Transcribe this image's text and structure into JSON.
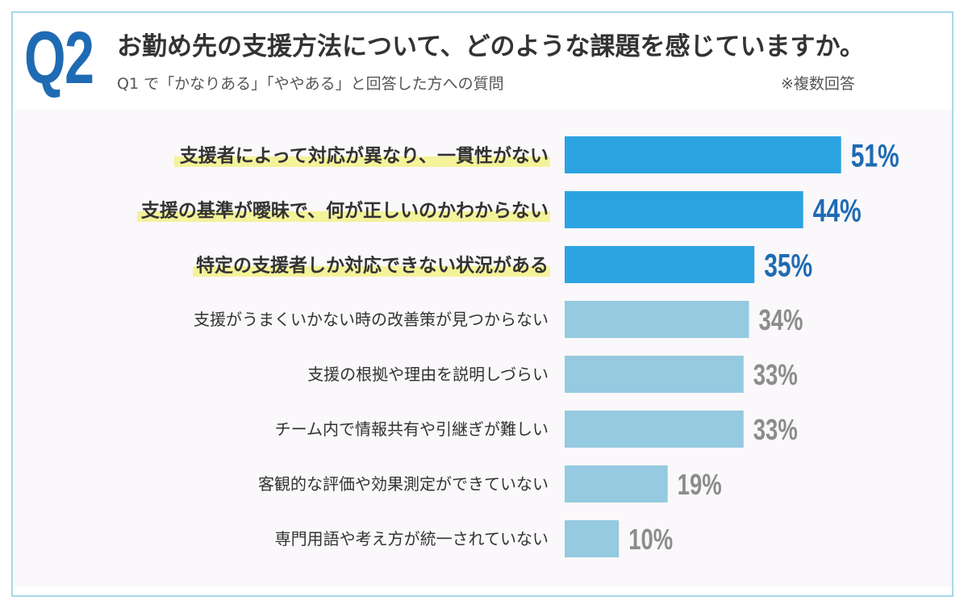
{
  "header": {
    "q_label": "Q2",
    "title": "お勤め先の支援方法について、どのような課題を感じていますか。",
    "subtitle": "Q1 で「かなりある」「ややある」と回答した方への質問",
    "note": "※複数回答"
  },
  "colors": {
    "accent_dark": "#2ba3e1",
    "accent_light": "#95cae0",
    "highlight": "#f4f29a",
    "value_dark": "#1f6bb3",
    "value_light": "#8c8c8c"
  },
  "chart_data": {
    "type": "bar",
    "orientation": "horizontal",
    "categories": [
      "支援者によって対応が異なり、一貫性がない",
      "支援の基準が曖昧で、何が正しいのかわからない",
      "特定の支援者しか対応できない状況がある",
      "支援がうまくいかない時の改善策が見つからない",
      "支援の根拠や理由を説明しづらい",
      "チーム内で情報共有や引継ぎが難しい",
      "客観的な評価や効果測定ができていない",
      "専門用語や考え方が統一されていない"
    ],
    "values": [
      51,
      44,
      35,
      34,
      33,
      33,
      19,
      10
    ],
    "value_labels": [
      "51%",
      "44%",
      "35%",
      "34%",
      "33%",
      "33%",
      "19%",
      "10%"
    ],
    "highlighted": [
      true,
      true,
      true,
      false,
      false,
      false,
      false,
      false
    ],
    "unit": "%",
    "xlim": [
      0,
      100
    ],
    "grid": false,
    "legend": "none"
  }
}
